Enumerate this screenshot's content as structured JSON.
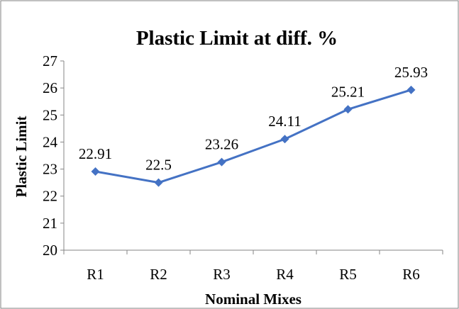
{
  "chart_data": {
    "type": "line",
    "title": "Plastic Limit  at diff. %",
    "xlabel": "Nominal  Mixes",
    "ylabel": "Plastic Limit",
    "categories": [
      "R1",
      "R2",
      "R3",
      "R4",
      "R5",
      "R6"
    ],
    "series": [
      {
        "values": [
          22.91,
          22.5,
          23.26,
          24.11,
          25.21,
          25.93
        ],
        "labels": [
          "22.91",
          "22.5",
          "23.26",
          "24.11",
          "25.21",
          "25.93"
        ],
        "color": "#4472C4",
        "marker": "diamond"
      }
    ],
    "ylim": [
      20,
      27
    ],
    "yticks": [
      "20",
      "21",
      "22",
      "23",
      "24",
      "25",
      "26",
      "27"
    ],
    "grid": false,
    "legend": "none",
    "border_color": "#808080"
  }
}
